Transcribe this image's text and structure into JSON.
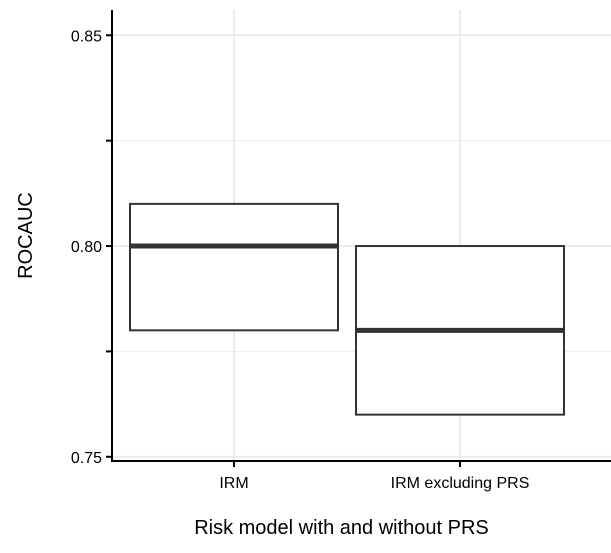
{
  "chart_data": {
    "type": "boxplot",
    "xlabel": "Risk model with and without PRS",
    "ylabel": "ROCAUC",
    "categories": [
      "IRM",
      "IRM excluding PRS"
    ],
    "boxes": [
      {
        "category": "IRM",
        "lower": 0.78,
        "median": 0.8,
        "upper": 0.81
      },
      {
        "category": "IRM excluding PRS",
        "lower": 0.76,
        "median": 0.78,
        "upper": 0.8
      }
    ],
    "ylim": [
      0.749,
      0.856
    ],
    "yticks": [
      0.75,
      0.8,
      0.85
    ],
    "ytick_labels": [
      "0.75",
      "0.80",
      "0.85"
    ],
    "minor_yticks": [
      0.775,
      0.825
    ],
    "grid": true,
    "colors": {
      "box_stroke": "#333333",
      "box_fill": "#ffffff",
      "grid": "#ebebeb",
      "axis": "#000000"
    }
  }
}
